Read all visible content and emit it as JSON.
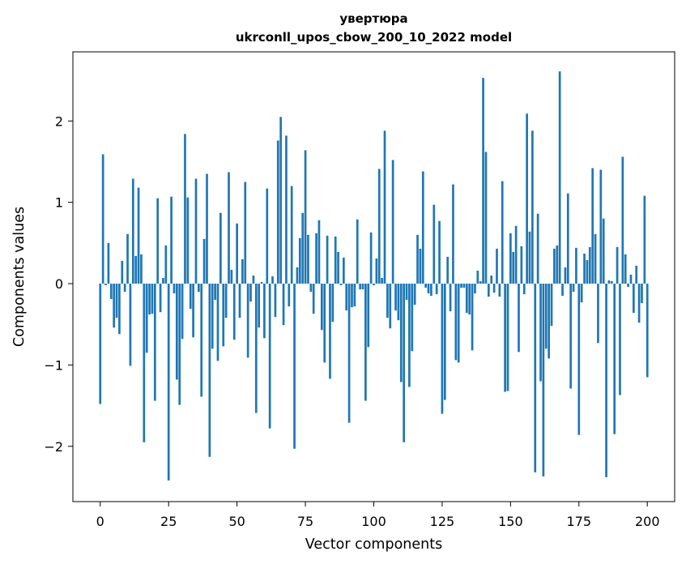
{
  "chart_data": {
    "type": "bar",
    "title_line1": "увертюра",
    "title_line2": "ukrconll_upos_cbow_200_10_2022 model",
    "xlabel": "Vector components",
    "ylabel": "Components values",
    "xlim": [
      -10,
      210
    ],
    "ylim": [
      -2.68,
      2.85
    ],
    "xticks": [
      0,
      25,
      50,
      75,
      100,
      125,
      150,
      175,
      200
    ],
    "xtick_labels": [
      "0",
      "25",
      "50",
      "75",
      "100",
      "125",
      "150",
      "175",
      "200"
    ],
    "yticks": [
      -2,
      -1,
      0,
      1,
      2
    ],
    "ytick_labels": [
      "−2",
      "−1",
      "0",
      "1",
      "2"
    ],
    "bar_color": "#1f77b4",
    "grid": false,
    "values": [
      -1.48,
      1.59,
      -0.02,
      0.5,
      -0.19,
      -0.54,
      -0.42,
      -0.62,
      0.28,
      -0.1,
      0.61,
      -1.01,
      1.29,
      0.34,
      1.18,
      0.36,
      -1.95,
      -0.85,
      -0.38,
      -0.37,
      -1.44,
      1.05,
      -0.35,
      0.07,
      0.47,
      -2.42,
      1.07,
      -0.12,
      -1.18,
      -1.49,
      -0.68,
      1.84,
      1.06,
      -0.31,
      -0.66,
      1.29,
      -0.1,
      -1.39,
      0.55,
      1.35,
      -2.13,
      -0.8,
      -0.2,
      -0.95,
      0.87,
      -0.77,
      -0.42,
      1.37,
      0.17,
      -0.69,
      0.74,
      -0.42,
      0.3,
      1.25,
      -0.91,
      -0.22,
      0.1,
      -1.59,
      -0.54,
      0.02,
      -0.67,
      1.17,
      -1.78,
      0.09,
      -0.41,
      1.76,
      2.05,
      -0.51,
      1.82,
      -0.28,
      1.2,
      -2.03,
      0.2,
      0.56,
      0.87,
      1.64,
      0.6,
      -0.1,
      -0.37,
      0.62,
      0.78,
      -0.57,
      -0.97,
      0.59,
      -1.17,
      -0.47,
      0.58,
      0.39,
      -0.02,
      0.32,
      -0.33,
      -1.71,
      -0.29,
      -0.28,
      0.79,
      -0.07,
      -0.07,
      -1.44,
      -0.78,
      0.63,
      -0.02,
      0.31,
      1.41,
      0.07,
      1.88,
      -0.42,
      -0.55,
      1.52,
      -0.33,
      -0.45,
      -1.21,
      -1.95,
      -0.2,
      -1.27,
      -0.83,
      -0.26,
      0.6,
      0.43,
      1.38,
      -0.05,
      -0.12,
      -0.15,
      0.97,
      -0.13,
      0.77,
      -1.6,
      -1.43,
      0.33,
      -0.34,
      1.22,
      -0.94,
      -0.97,
      -0.05,
      -0.05,
      -0.36,
      -0.38,
      -0.82,
      -0.12,
      0.16,
      0.03,
      2.53,
      1.62,
      -0.16,
      0.1,
      -0.11,
      0.43,
      -0.16,
      1.26,
      -1.33,
      -1.32,
      0.62,
      0.39,
      0.71,
      -0.84,
      0.46,
      -0.13,
      2.09,
      0.64,
      1.88,
      -2.32,
      0.86,
      -1.2,
      -2.37,
      -0.8,
      -0.92,
      -0.52,
      0.43,
      0.47,
      2.61,
      -0.15,
      0.2,
      1.11,
      -1.29,
      -0.1,
      0.44,
      -1.86,
      -0.23,
      0.37,
      0.29,
      0.45,
      1.42,
      0.61,
      -0.73,
      1.4,
      0.8,
      -2.38,
      0.04,
      0.03,
      -1.85,
      0.45,
      -1.37,
      1.56,
      0.36,
      -0.04,
      0.11,
      -0.36,
      0.22,
      -0.48,
      -0.24,
      1.08,
      -1.15
    ]
  }
}
